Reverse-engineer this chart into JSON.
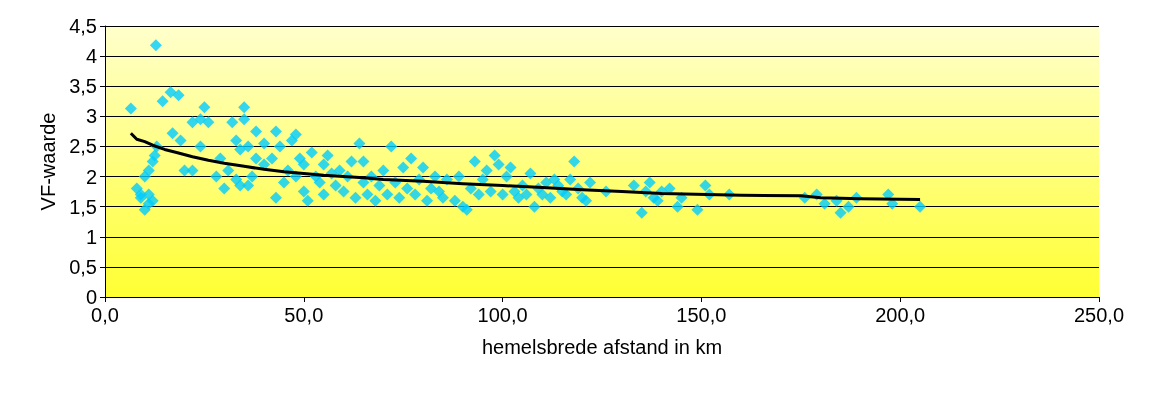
{
  "chart_data": {
    "type": "scatter",
    "xlabel": "hemelsbrede afstand in km",
    "ylabel": "VF-waarde",
    "xlim": [
      0,
      250
    ],
    "xticks": [
      {
        "value": 0,
        "label": "0,0"
      },
      {
        "value": 50,
        "label": "50,0"
      },
      {
        "value": 100,
        "label": "100,0"
      },
      {
        "value": 150,
        "label": "150,0"
      },
      {
        "value": 200,
        "label": "200,0"
      },
      {
        "value": 250,
        "label": "250,0"
      }
    ],
    "ylim": [
      0,
      4.5
    ],
    "yticks": [
      0,
      {
        "value": 0.5,
        "label": "0,5"
      },
      1,
      {
        "value": 1.5,
        "label": "1,5"
      },
      2,
      {
        "value": 2.5,
        "label": "2,5"
      },
      3,
      {
        "value": 3.5,
        "label": "3,5"
      },
      4,
      {
        "value": 4.5,
        "label": "4,5"
      }
    ],
    "grid": "y",
    "series": [
      {
        "marker": "diamond",
        "color": "#00ccff",
        "x": [
          6.5,
          12.8,
          14.5,
          16.5,
          18.5,
          19,
          17,
          20,
          22,
          22,
          24,
          25,
          24,
          26,
          8,
          9,
          10,
          10,
          11,
          11,
          12,
          12.5,
          13,
          9,
          11,
          12,
          28,
          29,
          30,
          31,
          32,
          33,
          34,
          35,
          35,
          36,
          36,
          37,
          38,
          38,
          34,
          33,
          40,
          40,
          42,
          43,
          43,
          44,
          45,
          46,
          47,
          48,
          48,
          49,
          50,
          50,
          51,
          52,
          53,
          54,
          55,
          55,
          56,
          57,
          58,
          59,
          60,
          61,
          62,
          63,
          64,
          65,
          65,
          66,
          67,
          68,
          69,
          70,
          71,
          72,
          73,
          74,
          75,
          76,
          77,
          78,
          79,
          80,
          81,
          82,
          83,
          84,
          85,
          86,
          88,
          89,
          90,
          91,
          92,
          93,
          94,
          95,
          96,
          97,
          98,
          99,
          100,
          101,
          102,
          103,
          104,
          105,
          106,
          107,
          108,
          109,
          110,
          111,
          112,
          113,
          114,
          115,
          116,
          117,
          118,
          119,
          120,
          121,
          122,
          126,
          133,
          135,
          136,
          137,
          138,
          139,
          140,
          142,
          144,
          145,
          149,
          151,
          152,
          157,
          176,
          179,
          181,
          184,
          185,
          187,
          189,
          197,
          198,
          205
        ],
        "values": [
          3.13,
          4.18,
          3.25,
          3.4,
          3.35,
          2.6,
          2.72,
          2.1,
          2.9,
          2.1,
          2.95,
          3.15,
          2.5,
          2.9,
          1.8,
          1.7,
          1.45,
          2.0,
          1.55,
          1.7,
          2.25,
          2.35,
          2.5,
          1.65,
          2.1,
          1.6,
          2.0,
          2.3,
          1.8,
          2.1,
          2.9,
          2.6,
          2.45,
          3.15,
          2.95,
          2.5,
          1.85,
          2.0,
          2.75,
          2.3,
          1.85,
          1.95,
          2.55,
          2.2,
          2.3,
          1.65,
          2.75,
          2.5,
          1.9,
          2.1,
          2.6,
          2.7,
          2.0,
          2.3,
          1.75,
          2.2,
          1.6,
          2.4,
          2.0,
          1.9,
          2.2,
          1.7,
          2.35,
          2.05,
          1.85,
          2.1,
          1.75,
          2.0,
          2.25,
          1.65,
          2.55,
          1.9,
          2.25,
          1.7,
          2.0,
          1.6,
          1.85,
          2.1,
          1.7,
          2.5,
          1.9,
          1.65,
          2.15,
          1.8,
          2.3,
          1.7,
          1.95,
          2.15,
          1.6,
          1.8,
          2.0,
          1.75,
          1.65,
          1.95,
          1.6,
          2.0,
          1.5,
          1.45,
          1.8,
          2.25,
          1.7,
          1.95,
          2.1,
          1.75,
          2.35,
          2.2,
          1.7,
          2.0,
          2.15,
          1.75,
          1.65,
          1.85,
          1.7,
          2.05,
          1.5,
          1.8,
          1.7,
          1.9,
          1.65,
          1.95,
          1.85,
          1.75,
          1.7,
          1.95,
          2.25,
          1.8,
          1.65,
          1.6,
          1.9,
          1.75,
          1.85,
          1.4,
          1.75,
          1.9,
          1.65,
          1.6,
          1.75,
          1.8,
          1.5,
          1.65,
          1.45,
          1.85,
          1.7,
          1.7,
          1.65,
          1.7,
          1.55,
          1.6,
          1.4,
          1.5,
          1.65,
          1.7,
          1.55,
          1.5
        ]
      },
      {
        "type": "line",
        "marker": "none",
        "color": "#000000",
        "x": [
          6.5,
          8,
          10,
          12,
          15,
          18,
          22,
          26,
          30,
          35,
          40,
          45,
          50,
          55,
          60,
          65,
          70,
          80,
          90,
          100,
          110,
          120,
          130,
          140,
          160,
          175,
          180,
          190,
          205
        ],
        "values": [
          2.72,
          2.62,
          2.58,
          2.52,
          2.45,
          2.4,
          2.33,
          2.27,
          2.22,
          2.17,
          2.12,
          2.08,
          2.05,
          2.02,
          2.0,
          1.98,
          1.95,
          1.92,
          1.88,
          1.85,
          1.82,
          1.78,
          1.75,
          1.72,
          1.69,
          1.68,
          1.65,
          1.63,
          1.62
        ]
      }
    ]
  }
}
